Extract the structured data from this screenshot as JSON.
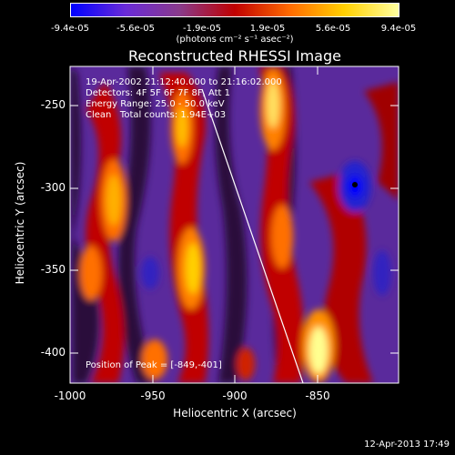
{
  "colorbar": {
    "ticks": [
      "-9.4e-05",
      "-5.6e-05",
      "-1.9e-05",
      "1.9e-05",
      "5.6e-05",
      "9.4e-05"
    ],
    "units": "(photons cm⁻² s⁻¹ asec⁻²)",
    "range": [
      -9.4e-05,
      9.4e-05
    ],
    "colors": [
      "#0000ff",
      "#6a2bd8",
      "#8a3a8a",
      "#c00000",
      "#ff6a00",
      "#ffd000",
      "#ffffa0"
    ]
  },
  "plot": {
    "title": "Reconstructed RHESSI Image",
    "annotations": {
      "time_range": "19-Apr-2002 21:12:40.000 to 21:16:02.000",
      "detectors": "Detectors: 4F 5F 6F 7F 8F, Att 1",
      "energy": "Energy Range: 25.0 - 50.0 keV",
      "clean": "Clean   Total counts: 1.94E+03",
      "peak": "Position of Peak = [-849,-401]"
    },
    "xlabel": "Heliocentric X (arcsec)",
    "ylabel": "Heliocentric Y (arcsec)",
    "xticks": [
      "-1000",
      "-950",
      "-900",
      "-850"
    ],
    "yticks": [
      "-250",
      "-300",
      "-350",
      "-400"
    ]
  },
  "footer": {
    "date": "12-Apr-2013 17:49"
  }
}
